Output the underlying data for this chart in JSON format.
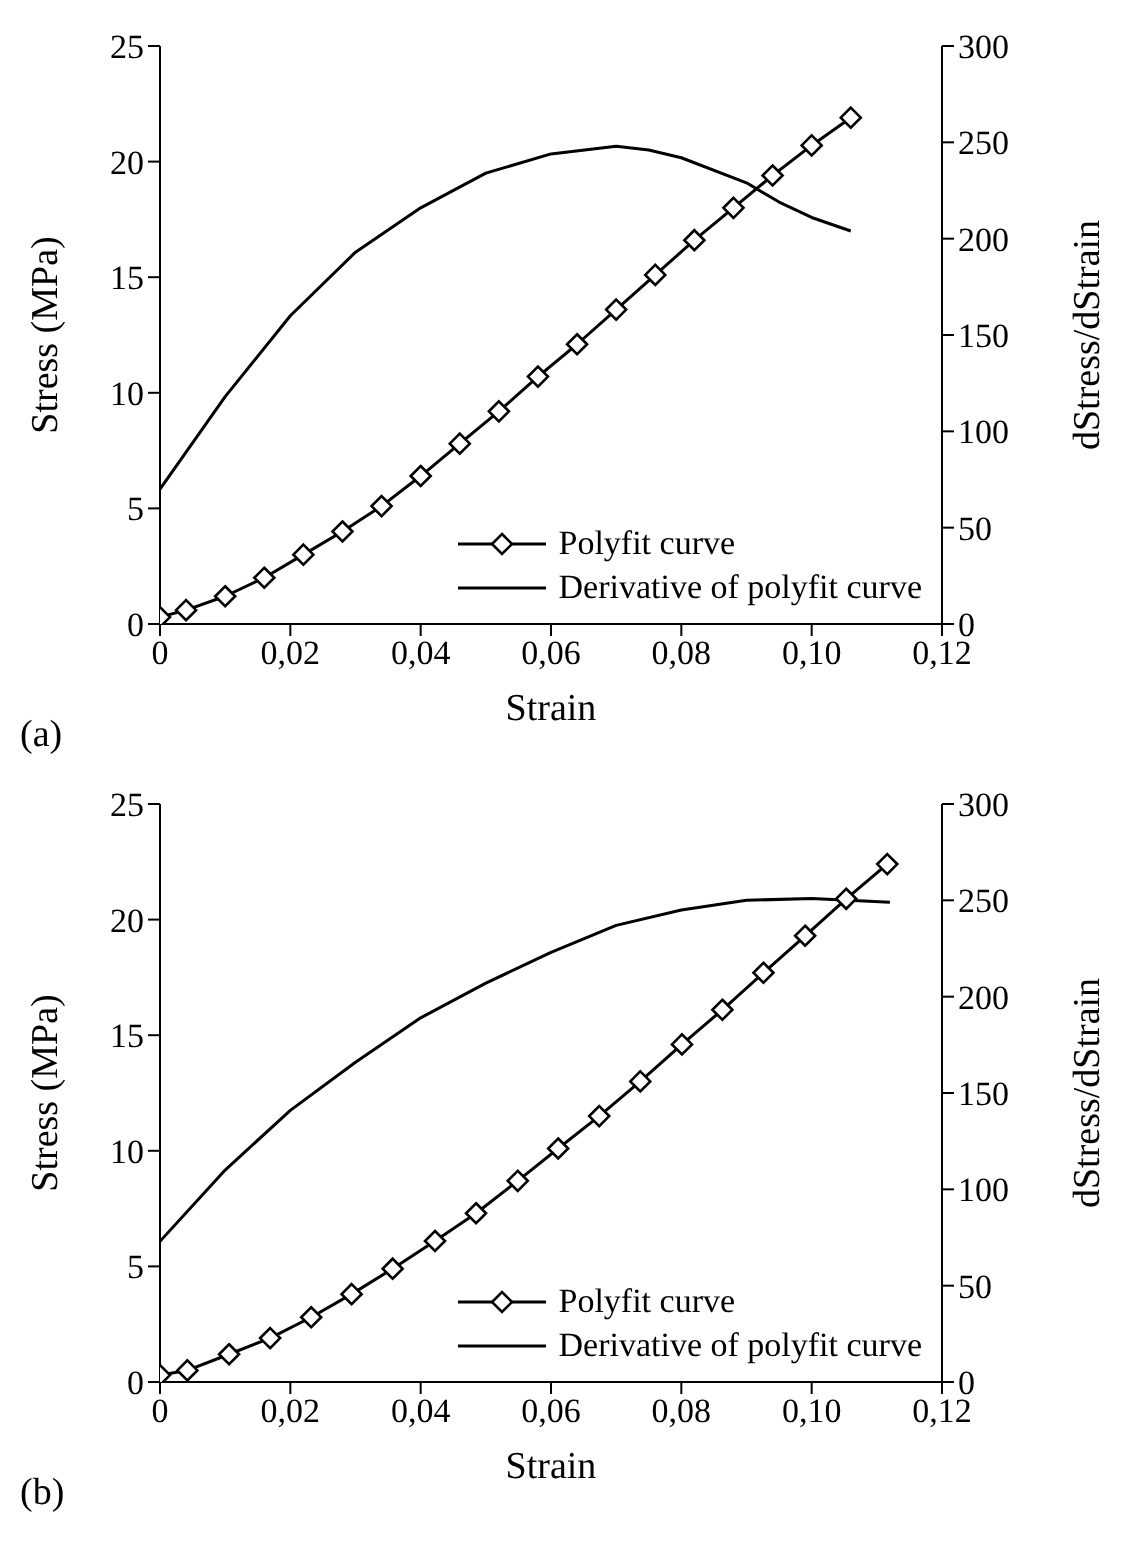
{
  "chart_data": [
    {
      "type": "line",
      "xlabel": "Strain",
      "ylabel": "Stress (MPa)",
      "y2label": "dStress/dStrain",
      "annotations": [
        "(a)"
      ],
      "xlim": [
        0,
        0.12
      ],
      "xticks": [
        {
          "value": 0,
          "label": "0"
        },
        {
          "value": 0.02,
          "label": "0,02"
        },
        {
          "value": 0.04,
          "label": "0,04"
        },
        {
          "value": 0.06,
          "label": "0,06"
        },
        {
          "value": 0.08,
          "label": "0,08"
        },
        {
          "value": 0.1,
          "label": "0,10"
        },
        {
          "value": 0.12,
          "label": "0,12"
        }
      ],
      "ylim": [
        0,
        25
      ],
      "yticks": [
        0,
        5,
        10,
        15,
        20,
        25
      ],
      "y2lim": [
        0,
        300
      ],
      "y2ticks": [
        0,
        50,
        100,
        150,
        200,
        250,
        300
      ],
      "legend": "bottom right",
      "grid": false,
      "line_style": "solid",
      "series": [
        {
          "name": "Polyfit curve",
          "color": "#000000",
          "marker": "diamond",
          "x": [
            0,
            0.004,
            0.01,
            0.016,
            0.022,
            0.028,
            0.034,
            0.04,
            0.046,
            0.052,
            0.058,
            0.064,
            0.07,
            0.076,
            0.082,
            0.088,
            0.094,
            0.1,
            0.106
          ],
          "values": [
            0.3,
            0.6,
            1.2,
            2.0,
            3.0,
            4.0,
            5.1,
            6.4,
            7.8,
            9.2,
            10.7,
            12.1,
            13.6,
            15.1,
            16.6,
            18.0,
            19.4,
            20.7,
            21.9
          ]
        },
        {
          "name": "Derivative of polyfit curve",
          "color": "#000000",
          "marker": "none",
          "axis": "y2",
          "x": [
            0,
            0.01,
            0.02,
            0.03,
            0.04,
            0.05,
            0.06,
            0.07,
            0.075,
            0.08,
            0.09,
            0.095,
            0.1,
            0.106
          ],
          "values": [
            70,
            118,
            160,
            193,
            216,
            234,
            244,
            248,
            246,
            242,
            229,
            219,
            211,
            204
          ]
        }
      ]
    },
    {
      "type": "line",
      "xlabel": "Strain",
      "ylabel": "Stress (MPa)",
      "y2label": "dStress/dStrain",
      "annotations": [
        "(b)"
      ],
      "xlim": [
        0,
        0.12
      ],
      "xticks": [
        {
          "value": 0,
          "label": "0"
        },
        {
          "value": 0.02,
          "label": "0,02"
        },
        {
          "value": 0.04,
          "label": "0,04"
        },
        {
          "value": 0.06,
          "label": "0,06"
        },
        {
          "value": 0.08,
          "label": "0,08"
        },
        {
          "value": 0.1,
          "label": "0,10"
        },
        {
          "value": 0.12,
          "label": "0,12"
        }
      ],
      "ylim": [
        0,
        25
      ],
      "yticks": [
        0,
        5,
        10,
        15,
        20,
        25
      ],
      "y2lim": [
        0,
        300
      ],
      "y2ticks": [
        0,
        50,
        100,
        150,
        200,
        250,
        300
      ],
      "legend": "bottom right",
      "grid": false,
      "line_style": "solid",
      "series": [
        {
          "name": "Polyfit curve",
          "color": "#000000",
          "marker": "diamond",
          "x": [
            0,
            0.0042,
            0.0106,
            0.0169,
            0.0232,
            0.0294,
            0.0357,
            0.0422,
            0.0485,
            0.0549,
            0.0611,
            0.0674,
            0.0737,
            0.0801,
            0.0863,
            0.0926,
            0.099,
            0.1053,
            0.1116
          ],
          "values": [
            0.3,
            0.5,
            1.2,
            1.9,
            2.8,
            3.8,
            4.9,
            6.1,
            7.3,
            8.7,
            10.1,
            11.5,
            13.0,
            14.6,
            16.1,
            17.7,
            19.3,
            20.9,
            22.4
          ]
        },
        {
          "name": "Derivative of polyfit curve",
          "color": "#000000",
          "marker": "none",
          "axis": "y2",
          "x": [
            0,
            0.01,
            0.02,
            0.03,
            0.04,
            0.05,
            0.06,
            0.07,
            0.08,
            0.09,
            0.1,
            0.112
          ],
          "values": [
            73,
            110,
            141,
            166,
            189,
            207,
            223,
            237,
            245,
            250,
            251,
            249
          ]
        }
      ]
    }
  ]
}
